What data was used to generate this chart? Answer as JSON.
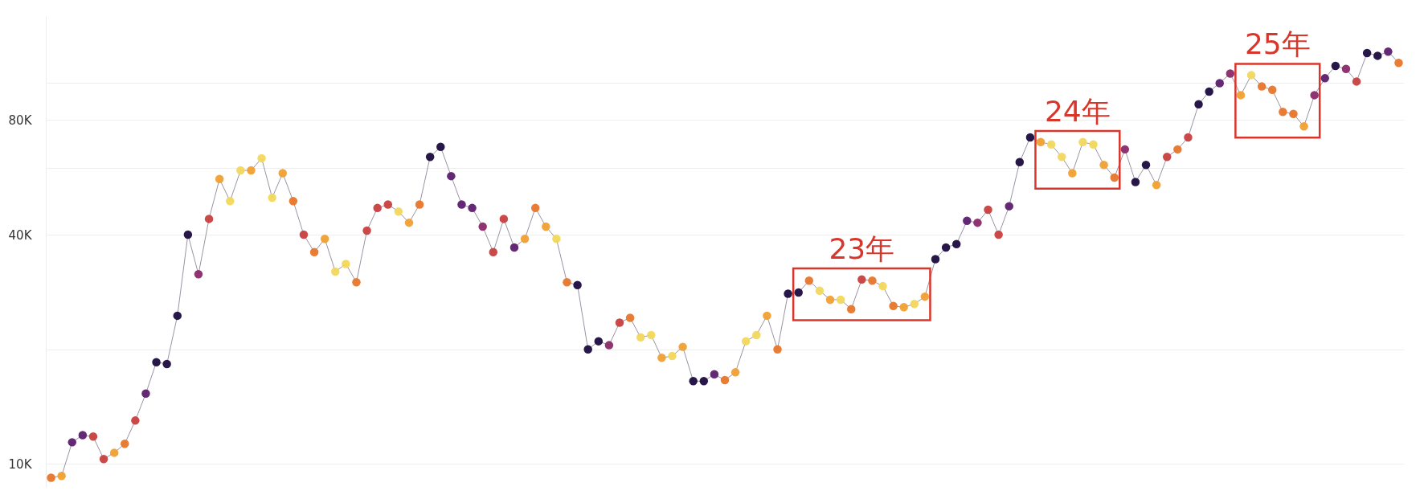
{
  "chart_data": {
    "type": "line",
    "categories": [
      null,
      null,
      null,
      null,
      null,
      null,
      null,
      null,
      null,
      null,
      null,
      null,
      null,
      null,
      null,
      null,
      null,
      null,
      null,
      null,
      null,
      null,
      null,
      null,
      null,
      null,
      null,
      null,
      null,
      null,
      null,
      null,
      null,
      null,
      null,
      null,
      null,
      null,
      null,
      null,
      null,
      null,
      null,
      null,
      null,
      null,
      null,
      null,
      null,
      null,
      null,
      null,
      null,
      null,
      null,
      null,
      null,
      null,
      null,
      null,
      null,
      null,
      null,
      null,
      null,
      null,
      null,
      null,
      null,
      null,
      null,
      null,
      null,
      null,
      null,
      null,
      null,
      null,
      null,
      null,
      null,
      null,
      null,
      null,
      null,
      null,
      null,
      null,
      null,
      null,
      null,
      null,
      null,
      null,
      null,
      null,
      null,
      null,
      null,
      null,
      null,
      null,
      null,
      null,
      null,
      null,
      null,
      null,
      null,
      null,
      null,
      null,
      null,
      null,
      null,
      null,
      null,
      null,
      null,
      null,
      null,
      null,
      null,
      null,
      null,
      null,
      null,
      null,
      null
    ],
    "marker": "circle",
    "series": [
      {
        "color": "#9a93a3",
        "values": [
          9200,
          9300,
          11400,
          11900,
          11800,
          10300,
          10700,
          11300,
          13000,
          15300,
          18500,
          18300,
          24500,
          40000,
          31500,
          44000,
          56000,
          49000,
          59000,
          59000,
          63500,
          50000,
          58000,
          49000,
          40000,
          36000,
          39000,
          32000,
          33500,
          30000,
          41000,
          47000,
          48000,
          46000,
          43000,
          48000,
          64000,
          68000,
          57000,
          48000,
          47000,
          42000,
          36000,
          44000,
          37000,
          39000,
          47000,
          42000,
          39000,
          30000,
          29500,
          20000,
          21000,
          20500,
          23500,
          24200,
          21500,
          21800,
          19000,
          19200,
          20300,
          16500,
          16500,
          17200,
          16600,
          17400,
          21000,
          21800,
          24500,
          20000,
          28000,
          28200,
          30300,
          28500,
          27000,
          27000,
          25500,
          30500,
          30300,
          29300,
          26000,
          25800,
          26300,
          27500,
          34500,
          37000,
          37800,
          43500,
          43000,
          46500,
          40000,
          47500,
          62000,
          72000,
          70000,
          69000,
          64000,
          58000,
          70000,
          69000,
          61000,
          56500,
          67000,
          55000,
          61000,
          54000,
          64000,
          67000,
          72000,
          88000,
          95000,
          100000,
          106000,
          93000,
          105000,
          98000,
          96000,
          84000,
          83000,
          77000,
          93000,
          103000,
          111000,
          109000,
          101000,
          120000,
          118000,
          121000,
          113000
        ],
        "colors": [
          "#e8762a",
          "#f0a030",
          "#5d1f6e",
          "#5d1f6e",
          "#c8403f",
          "#c8403f",
          "#f0a030",
          "#e8762a",
          "#c8403f",
          "#5d1f6e",
          "#1c0c3f",
          "#1c0c3f",
          "#1c0c3f",
          "#1c0c3f",
          "#8a2a6a",
          "#c8403f",
          "#f0a030",
          "#f2d85c",
          "#f2d85c",
          "#f0a030",
          "#f2d85c",
          "#f2d85c",
          "#f0a030",
          "#e8762a",
          "#c8403f",
          "#e8762a",
          "#f0a030",
          "#f2d85c",
          "#f2d85c",
          "#e8762a",
          "#c8403f",
          "#c8403f",
          "#c8403f",
          "#f2d85c",
          "#f0a030",
          "#e8762a",
          "#1c0c3f",
          "#1c0c3f",
          "#5d1f6e",
          "#5d1f6e",
          "#5d1f6e",
          "#8a2a6a",
          "#c8403f",
          "#c8403f",
          "#5d1f6e",
          "#f0a030",
          "#e8762a",
          "#f0a030",
          "#f2d85c",
          "#e8762a",
          "#1c0c3f",
          "#1c0c3f",
          "#1c0c3f",
          "#8a2a6a",
          "#c8403f",
          "#e8762a",
          "#f2d85c",
          "#f2d85c",
          "#f0a030",
          "#f2d85c",
          "#f0a030",
          "#1c0c3f",
          "#1c0c3f",
          "#5d1f6e",
          "#e8762a",
          "#f0a030",
          "#f2d85c",
          "#f2d85c",
          "#f0a030",
          "#e8762a",
          "#1c0c3f",
          "#1c0c3f",
          "#e8762a",
          "#f2d85c",
          "#f0a030",
          "#f2d85c",
          "#e8762a",
          "#c8403f",
          "#e8762a",
          "#f2d85c",
          "#e8762a",
          "#f0a030",
          "#f2d85c",
          "#f0a030",
          "#1c0c3f",
          "#1c0c3f",
          "#1c0c3f",
          "#5d1f6e",
          "#8a2a6a",
          "#c8403f",
          "#c8403f",
          "#5d1f6e",
          "#1c0c3f",
          "#1c0c3f",
          "#f0a030",
          "#f2d85c",
          "#f2d85c",
          "#f0a030",
          "#f2d85c",
          "#f2d85c",
          "#f0a030",
          "#e8762a",
          "#8a2a6a",
          "#1c0c3f",
          "#1c0c3f",
          "#f0a030",
          "#c8403f",
          "#e8762a",
          "#c8403f",
          "#1c0c3f",
          "#1c0c3f",
          "#5d1f6e",
          "#8a2a6a",
          "#f0a030",
          "#f2d85c",
          "#e8762a",
          "#e8762a",
          "#e8762a",
          "#e8762a",
          "#f0a030",
          "#8a2a6a",
          "#5d1f6e",
          "#1c0c3f",
          "#8a2a6a",
          "#c8403f",
          "#1c0c3f",
          "#1c0c3f",
          "#5d1f6e",
          "#e8762a"
        ]
      }
    ],
    "ylim": [
      8700,
      150000
    ],
    "yticks": [
      {
        "value": 10000,
        "label": "10K"
      },
      {
        "value": 20000,
        "label": null
      },
      {
        "value": 40000,
        "label": "40K"
      },
      {
        "value": 60000,
        "label": null
      },
      {
        "value": 80000,
        "label": "80K"
      },
      {
        "value": 100000,
        "label": null
      }
    ],
    "log": "y",
    "grid": "y",
    "legend": false,
    "tick_labels": "y",
    "annotations": [
      "23年",
      "24年",
      "25年"
    ]
  }
}
